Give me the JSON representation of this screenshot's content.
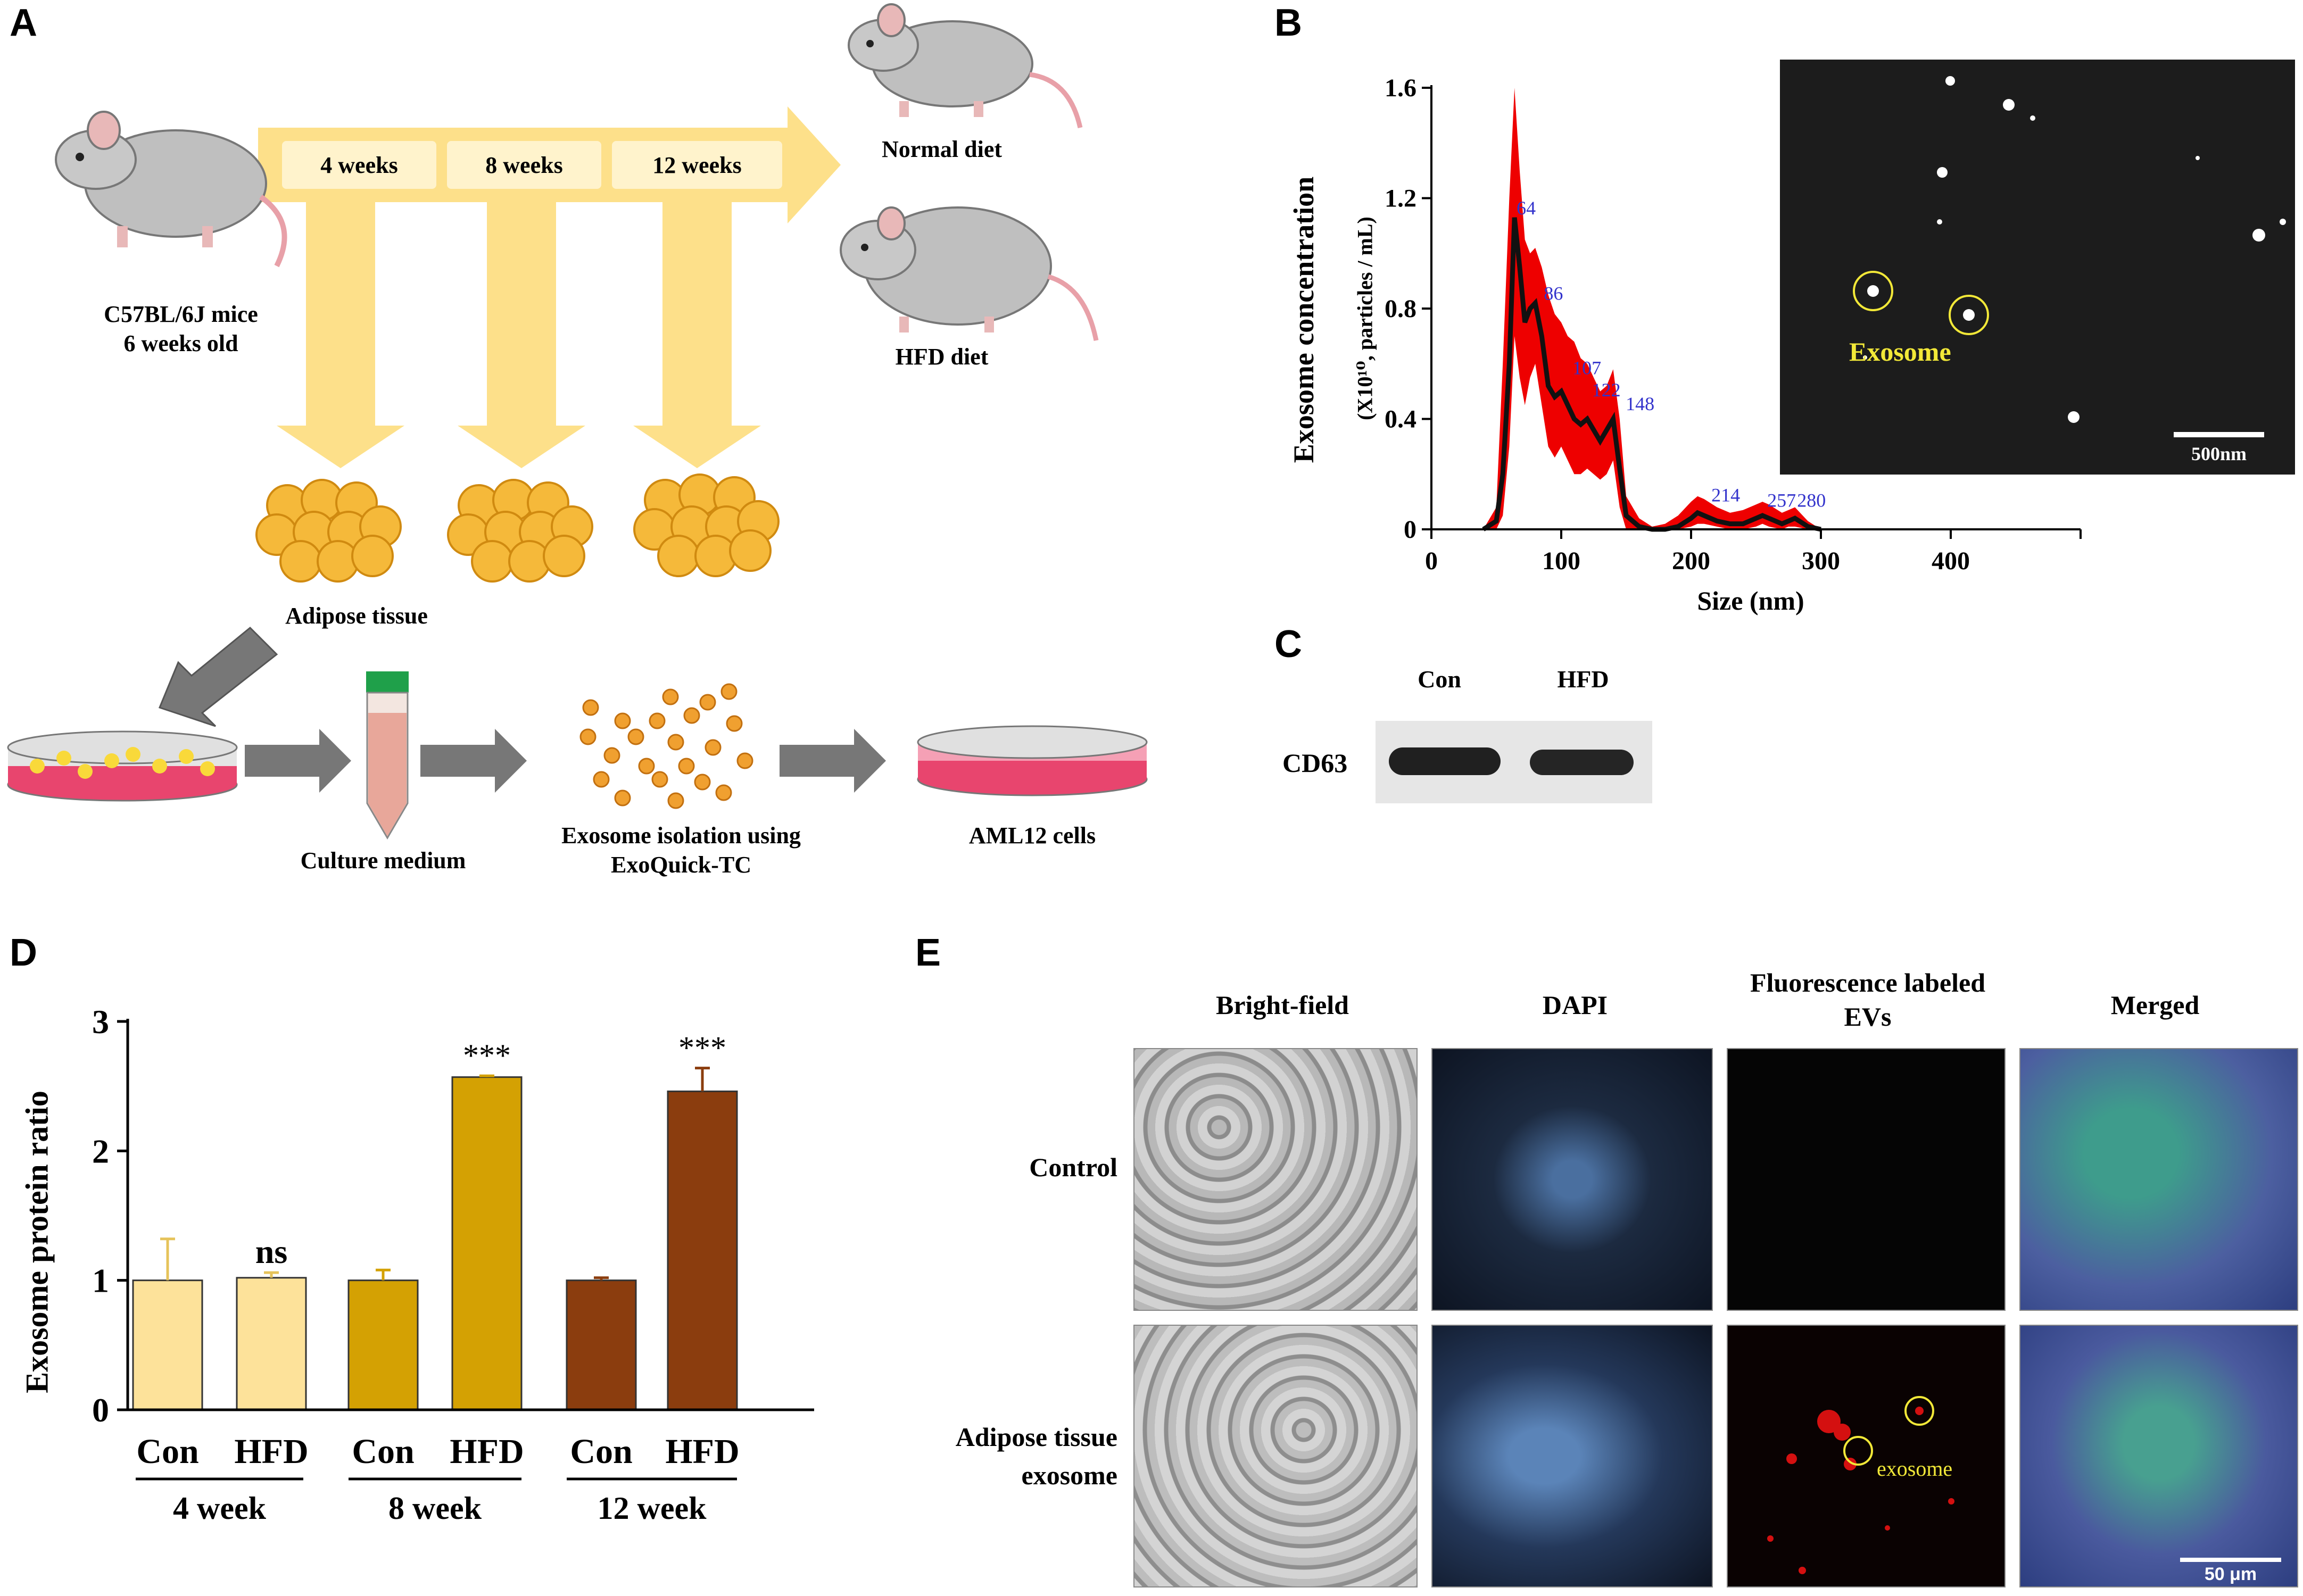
{
  "panels": {
    "a": "A",
    "b": "B",
    "c": "C",
    "d": "D",
    "e": "E"
  },
  "panel_a": {
    "timeline": [
      "4 weeks",
      "8 weeks",
      "12 weeks"
    ],
    "mouse_label": [
      "C57BL/6J mice",
      "6 weeks old"
    ],
    "normal_diet": "Normal diet",
    "hfd_diet": "HFD diet",
    "adipose": "Adipose tissue",
    "culture_medium": "Culture medium",
    "isolation": [
      "Exosome isolation using",
      "ExoQuick-TC"
    ],
    "cells": "AML12 cells",
    "colors": {
      "arrow": "#fde08a",
      "fat": "#f5b93a",
      "dish_pink": "#e8456e"
    }
  },
  "panel_b": {
    "tem_label": "Exosome",
    "scale": "500nm"
  },
  "panel_c": {
    "lanes": [
      "Con",
      "HFD"
    ],
    "band": "CD63"
  },
  "panel_e": {
    "columns": [
      "Bright-field",
      "DAPI",
      "Fluorescence labeled EVs",
      "Merged"
    ],
    "rows": [
      "Control",
      "Adipose tissue exosome"
    ],
    "exosome_label": "exosome",
    "scale": "50 μm"
  },
  "chart_data": [
    {
      "type": "line",
      "panel": "B",
      "ylabel": "Exosome concentration",
      "ylabel_sub": "(X10¹⁰, particles / mL)",
      "xlabel": "Size (nm)",
      "xlim": [
        0,
        500
      ],
      "ylim": [
        0,
        1.6
      ],
      "xticks": [
        "0",
        "100",
        "200",
        "300",
        "400"
      ],
      "yticks": [
        "0",
        "0.4",
        "0.8",
        "1.2",
        "1.6"
      ],
      "x": [
        40,
        50,
        55,
        60,
        64,
        68,
        72,
        76,
        80,
        85,
        90,
        95,
        100,
        105,
        110,
        115,
        120,
        125,
        130,
        135,
        140,
        145,
        150,
        160,
        170,
        180,
        190,
        200,
        205,
        210,
        220,
        230,
        240,
        250,
        255,
        260,
        270,
        275,
        280,
        290,
        300
      ],
      "y": [
        0,
        0.03,
        0.2,
        0.6,
        1.13,
        0.95,
        0.75,
        0.8,
        0.82,
        0.7,
        0.52,
        0.48,
        0.5,
        0.45,
        0.4,
        0.38,
        0.4,
        0.36,
        0.32,
        0.36,
        0.4,
        0.22,
        0.05,
        0.01,
        0,
        0,
        0.01,
        0.04,
        0.06,
        0.05,
        0.03,
        0.02,
        0.02,
        0.04,
        0.05,
        0.04,
        0.02,
        0.03,
        0.04,
        0.01,
        0
      ],
      "upper": [
        0,
        0.08,
        0.6,
        1.2,
        1.6,
        1.3,
        1.05,
        1.0,
        1.02,
        0.95,
        0.85,
        0.78,
        0.75,
        0.7,
        0.68,
        0.62,
        0.6,
        0.55,
        0.5,
        0.52,
        0.58,
        0.4,
        0.12,
        0.04,
        0.01,
        0.02,
        0.05,
        0.1,
        0.12,
        0.11,
        0.08,
        0.06,
        0.07,
        0.09,
        0.1,
        0.09,
        0.06,
        0.07,
        0.08,
        0.03,
        0
      ],
      "lower": [
        0,
        0,
        0.05,
        0.3,
        0.7,
        0.55,
        0.45,
        0.55,
        0.6,
        0.45,
        0.3,
        0.26,
        0.3,
        0.25,
        0.2,
        0.2,
        0.22,
        0.2,
        0.18,
        0.2,
        0.25,
        0.08,
        0,
        0,
        0,
        0,
        0,
        0.01,
        0.02,
        0.02,
        0.01,
        0,
        0,
        0.01,
        0.02,
        0.01,
        0,
        0.01,
        0.01,
        0,
        0
      ],
      "peak_labels": [
        {
          "x": 64,
          "y": 1.13,
          "text": "64"
        },
        {
          "x": 85,
          "y": 0.82,
          "text": "86"
        },
        {
          "x": 107,
          "y": 0.55,
          "text": "107"
        },
        {
          "x": 122,
          "y": 0.47,
          "text": "122"
        },
        {
          "x": 148,
          "y": 0.42,
          "text": "148"
        },
        {
          "x": 214,
          "y": 0.09,
          "text": "214"
        },
        {
          "x": 257,
          "y": 0.07,
          "text": "257"
        },
        {
          "x": 280,
          "y": 0.07,
          "text": "280"
        }
      ],
      "colors": {
        "line": "#111111",
        "band": "#ee0000",
        "peak_label": "#3333cc"
      }
    },
    {
      "type": "bar",
      "panel": "D",
      "ylabel": "Exosome protein ratio",
      "ylim": [
        0,
        3
      ],
      "yticks": [
        "0",
        "1",
        "2",
        "3"
      ],
      "categories": [
        "Con",
        "HFD",
        "Con",
        "HFD",
        "Con",
        "HFD"
      ],
      "groups": [
        "4 week",
        "8 week",
        "12 week"
      ],
      "values": [
        1.0,
        1.02,
        1.0,
        2.57,
        1.0,
        2.46
      ],
      "errors": [
        0.32,
        0.04,
        0.08,
        0.01,
        0.02,
        0.18
      ],
      "significance": [
        "",
        "ns",
        "",
        "***",
        "",
        "***"
      ],
      "colors": [
        "#fde29a",
        "#fde29a",
        "#d4a103",
        "#d4a103",
        "#8b3d0e",
        "#8b3d0e"
      ]
    }
  ]
}
